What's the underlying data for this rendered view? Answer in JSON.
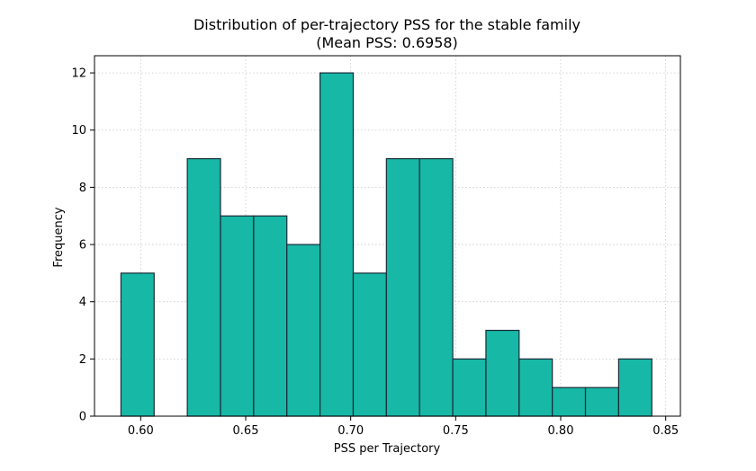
{
  "chart_data": {
    "type": "bar",
    "title": "Distribution of per-trajectory PSS for the stable family",
    "subtitle": "(Mean PSS: 0.6958)",
    "xlabel": "PSS per Trajectory",
    "ylabel": "Frequency",
    "xlim": [
      0.578,
      0.857
    ],
    "ylim": [
      0,
      12.6
    ],
    "grid": true,
    "bin_edges": [
      0.5906,
      0.6064,
      0.6222,
      0.638,
      0.6538,
      0.6696,
      0.6854,
      0.7012,
      0.717,
      0.7328,
      0.7486,
      0.7644,
      0.7802,
      0.796,
      0.8118,
      0.8276,
      0.8434
    ],
    "values": [
      5,
      0,
      9,
      7,
      7,
      6,
      12,
      5,
      9,
      9,
      2,
      3,
      2,
      1,
      1,
      2
    ],
    "x_ticks": [
      {
        "value": 0.6,
        "label": "0.60"
      },
      {
        "value": 0.65,
        "label": "0.65"
      },
      {
        "value": 0.7,
        "label": "0.70"
      },
      {
        "value": 0.75,
        "label": "0.75"
      },
      {
        "value": 0.8,
        "label": "0.80"
      },
      {
        "value": 0.85,
        "label": "0.85"
      }
    ],
    "y_ticks": [
      {
        "value": 0,
        "label": "0"
      },
      {
        "value": 2,
        "label": "2"
      },
      {
        "value": 4,
        "label": "4"
      },
      {
        "value": 6,
        "label": "6"
      },
      {
        "value": 8,
        "label": "8"
      },
      {
        "value": 10,
        "label": "10"
      },
      {
        "value": 12,
        "label": "12"
      }
    ],
    "colors": {
      "bar_fill": "#17b8a6",
      "bar_edge": "#1b2a38",
      "grid": "#c8c8c8",
      "axis": "#000000"
    }
  }
}
